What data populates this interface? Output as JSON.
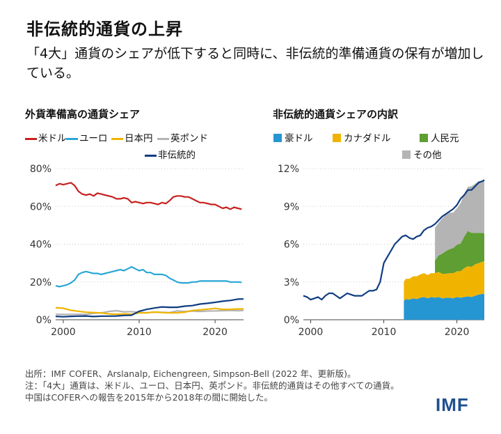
{
  "header": {
    "title": "非伝統的通貨の上昇",
    "subtitle": "「4大」通貨のシェアが低下すると同時に、非伝統的準備通貨の保有が増加している。"
  },
  "colors": {
    "usd": "#c8201e",
    "eur": "#2aa7d6",
    "jpy": "#f0b400",
    "gbp": "#b4b4b4",
    "nontrad": "#0f3c82",
    "aud": "#2696d3",
    "cad": "#f0b400",
    "cny": "#5f9e32",
    "other": "#b4b4b4",
    "brand": "#1f4f8f"
  },
  "left_panel": {
    "title": "外貨準備高の通貨シェア",
    "legend": [
      "米ドル",
      "ユーロ",
      "日本円",
      "英ポンド",
      "非伝統的"
    ]
  },
  "right_panel": {
    "title": "非伝統的通貨シェアの内訳",
    "legend": [
      "豪ドル",
      "カナダドル",
      "人民元",
      "その他"
    ]
  },
  "chart_data": [
    {
      "type": "line",
      "title": "外貨準備高の通貨シェア",
      "xlim": [
        1999,
        2023.75
      ],
      "ylim": [
        0,
        80
      ],
      "xticks": [
        "2000",
        "2010",
        "2020"
      ],
      "xtick_values": [
        2000,
        2010,
        2020
      ],
      "yticks": [
        "0%",
        "20%",
        "40%",
        "60%",
        "80%"
      ],
      "ytick_values": [
        0,
        20,
        40,
        60,
        80
      ],
      "series": [
        {
          "name": "米ドル",
          "key": "usd",
          "x": [
            1999,
            1999.5,
            2000,
            2000.5,
            2001,
            2001.5,
            2002,
            2002.5,
            2003,
            2003.5,
            2004,
            2004.5,
            2005,
            2005.5,
            2006,
            2006.5,
            2007,
            2007.5,
            2008,
            2008.5,
            2009,
            2009.5,
            2010,
            2010.5,
            2011,
            2011.5,
            2012,
            2012.5,
            2013,
            2013.5,
            2014,
            2014.5,
            2015,
            2015.5,
            2016,
            2016.5,
            2017,
            2017.5,
            2018,
            2018.5,
            2019,
            2019.5,
            2020,
            2020.5,
            2021,
            2021.5,
            2022,
            2022.5,
            2023,
            2023.5
          ],
          "y": [
            71,
            72,
            71.5,
            72,
            72.5,
            71,
            68,
            66.5,
            66,
            66.5,
            65.5,
            67,
            66.5,
            66,
            65.5,
            65,
            64,
            64,
            64.5,
            64,
            62,
            62.5,
            62,
            61.5,
            62,
            62,
            61.5,
            61,
            62,
            61.5,
            63,
            65,
            65.5,
            65.5,
            65,
            65,
            64,
            63,
            62,
            62,
            61.5,
            61,
            61,
            60,
            59,
            59.5,
            58.5,
            59.5,
            59,
            58.5
          ]
        },
        {
          "name": "ユーロ",
          "key": "eur",
          "x": [
            1999,
            1999.5,
            2000,
            2000.5,
            2001,
            2001.5,
            2002,
            2002.5,
            2003,
            2003.5,
            2004,
            2004.5,
            2005,
            2005.5,
            2006,
            2006.5,
            2007,
            2007.5,
            2008,
            2008.5,
            2009,
            2009.5,
            2010,
            2010.5,
            2011,
            2011.5,
            2012,
            2012.5,
            2013,
            2013.5,
            2014,
            2014.5,
            2015,
            2015.5,
            2016,
            2016.5,
            2017,
            2017.5,
            2018,
            2018.5,
            2019,
            2019.5,
            2020,
            2020.5,
            2021,
            2021.5,
            2022,
            2022.5,
            2023,
            2023.5
          ],
          "y": [
            18,
            17.5,
            18,
            18.5,
            19.5,
            21,
            24,
            25,
            25.5,
            25,
            24.5,
            24.5,
            24,
            24.5,
            25,
            25.5,
            26,
            26.5,
            26,
            27,
            28,
            27,
            26,
            26.5,
            25,
            25,
            24,
            24,
            24,
            23.5,
            22,
            21,
            20,
            19.5,
            19.5,
            19.5,
            20,
            20,
            20.5,
            20.5,
            20.5,
            20.5,
            20.5,
            20.5,
            20.5,
            20.5,
            20,
            20,
            20,
            19.8
          ]
        },
        {
          "name": "日本円",
          "key": "jpy",
          "x": [
            1999,
            2000,
            2001,
            2002,
            2003,
            2004,
            2005,
            2006,
            2007,
            2008,
            2009,
            2010,
            2011,
            2012,
            2013,
            2014,
            2015,
            2016,
            2017,
            2018,
            2019,
            2020,
            2021,
            2022,
            2023,
            2023.75
          ],
          "y": [
            6.4,
            6.1,
            5.0,
            4.5,
            4.0,
            3.8,
            3.6,
            3.1,
            2.9,
            3.1,
            2.9,
            3.7,
            3.6,
            4.1,
            3.8,
            3.6,
            3.7,
            4.0,
            4.9,
            5.2,
            5.6,
            6.0,
            5.5,
            5.5,
            5.7,
            5.7
          ]
        },
        {
          "name": "英ポンド",
          "key": "gbp",
          "x": [
            1999,
            2000,
            2001,
            2002,
            2003,
            2004,
            2005,
            2006,
            2007,
            2008,
            2009,
            2010,
            2011,
            2012,
            2013,
            2014,
            2015,
            2016,
            2017,
            2018,
            2019,
            2020,
            2021,
            2022,
            2023,
            2023.75
          ],
          "y": [
            2.9,
            2.8,
            2.8,
            2.9,
            2.8,
            3.4,
            3.6,
            4.4,
            4.8,
            4.2,
            4.3,
            3.9,
            3.8,
            4.0,
            4.0,
            3.8,
            4.7,
            4.4,
            4.6,
            4.4,
            4.6,
            4.7,
            4.8,
            4.9,
            4.8,
            4.9
          ]
        },
        {
          "name": "非伝統的",
          "key": "nontrad",
          "x": [
            1999,
            2000,
            2001,
            2002,
            2003,
            2004,
            2005,
            2006,
            2007,
            2008,
            2009,
            2010,
            2011,
            2012,
            2013,
            2014,
            2015,
            2016,
            2017,
            2018,
            2019,
            2020,
            2021,
            2022,
            2023,
            2023.75
          ],
          "y": [
            1.8,
            1.6,
            1.8,
            1.9,
            2.0,
            1.7,
            1.9,
            1.9,
            2.0,
            2.3,
            2.4,
            4.5,
            5.5,
            6.2,
            6.8,
            6.6,
            6.6,
            7.2,
            7.5,
            8.3,
            8.7,
            9.2,
            9.8,
            10.2,
            10.9,
            11.0
          ]
        }
      ]
    },
    {
      "type": "area",
      "title": "非伝統的通貨シェアの内訳",
      "xlim": [
        1999,
        2023.75
      ],
      "ylim": [
        0,
        12
      ],
      "xticks": [
        "2000",
        "2010",
        "2020"
      ],
      "xtick_values": [
        2000,
        2010,
        2020
      ],
      "yticks": [
        "0%",
        "3%",
        "6%",
        "9%",
        "12%"
      ],
      "ytick_values": [
        0,
        3,
        6,
        9,
        12
      ],
      "total_line": {
        "name": "非伝統的",
        "x": [
          1999,
          1999.5,
          2000,
          2000.5,
          2001,
          2001.5,
          2002,
          2002.5,
          2003,
          2003.5,
          2004,
          2004.5,
          2005,
          2005.5,
          2006,
          2006.5,
          2007,
          2007.5,
          2008,
          2008.5,
          2009,
          2009.5,
          2010,
          2010.5,
          2011,
          2011.5,
          2012,
          2012.5,
          2013,
          2013.5,
          2014,
          2014.5,
          2015,
          2015.5,
          2016,
          2016.5,
          2017,
          2017.5,
          2018,
          2018.5,
          2019,
          2019.5,
          2020,
          2020.5,
          2021,
          2021.5,
          2022,
          2022.5,
          2023,
          2023.5,
          2023.75
        ],
        "y": [
          1.9,
          1.8,
          1.6,
          1.7,
          1.8,
          1.6,
          1.9,
          2.1,
          2.1,
          1.9,
          1.7,
          1.9,
          2.1,
          2.0,
          1.9,
          1.9,
          1.9,
          2.1,
          2.3,
          2.3,
          2.4,
          3.0,
          4.5,
          5.0,
          5.5,
          6.0,
          6.3,
          6.6,
          6.7,
          6.5,
          6.4,
          6.6,
          6.7,
          7.1,
          7.3,
          7.4,
          7.6,
          7.9,
          8.2,
          8.4,
          8.6,
          8.8,
          9.1,
          9.6,
          9.9,
          10.3,
          10.3,
          10.6,
          10.9,
          11.0,
          11.1
        ]
      },
      "x": [
        2012.75,
        2013,
        2013.5,
        2014,
        2014.5,
        2015,
        2015.5,
        2016,
        2016.5,
        2017,
        2017.5,
        2018,
        2018.5,
        2019,
        2019.5,
        2020,
        2020.5,
        2021,
        2021.5,
        2022,
        2022.5,
        2023,
        2023.5,
        2023.75
      ],
      "series": [
        {
          "name": "豪ドル",
          "key": "aud",
          "values": [
            1.5,
            1.65,
            1.6,
            1.7,
            1.65,
            1.75,
            1.8,
            1.7,
            1.8,
            1.75,
            1.8,
            1.7,
            1.75,
            1.75,
            1.7,
            1.8,
            1.75,
            1.8,
            1.85,
            1.8,
            1.9,
            2.0,
            2.05,
            2.05
          ]
        },
        {
          "name": "カナダドル",
          "key": "cad",
          "values": [
            1.5,
            1.6,
            1.65,
            1.75,
            1.8,
            1.85,
            1.9,
            1.85,
            1.9,
            1.95,
            2.0,
            1.95,
            1.9,
            1.95,
            2.0,
            2.05,
            2.1,
            2.3,
            2.4,
            2.4,
            2.5,
            2.5,
            2.55,
            2.6
          ]
        },
        {
          "name": "人民元",
          "key": "cny",
          "values": [
            0,
            0,
            0,
            0,
            0,
            0,
            0,
            0,
            0,
            1.0,
            1.3,
            1.6,
            1.8,
            1.9,
            2.0,
            2.1,
            2.2,
            2.5,
            2.8,
            2.7,
            2.5,
            2.4,
            2.3,
            2.2
          ]
        },
        {
          "name": "その他",
          "key": "other",
          "values": [
            0,
            0,
            0,
            0,
            0,
            0,
            0,
            0,
            0,
            2.6,
            2.6,
            2.8,
            2.9,
            2.9,
            2.8,
            2.9,
            3.2,
            3.4,
            3.5,
            3.7,
            3.9,
            4.1,
            4.15,
            4.2
          ]
        }
      ]
    }
  ],
  "footer": {
    "source": "出所：IMF COFER、Arslanalp, Eichengreen, Simpson-Bell (2022 年、更新版)。",
    "note1": "注：「4大」通貨は、米ドル、ユーロ、日本円、英ポンド。非伝統的通貨はその他すべての通貨。",
    "note2": "中国はCOFERへの報告を2015年から2018年の間に開始した。",
    "logo": "IMF"
  }
}
